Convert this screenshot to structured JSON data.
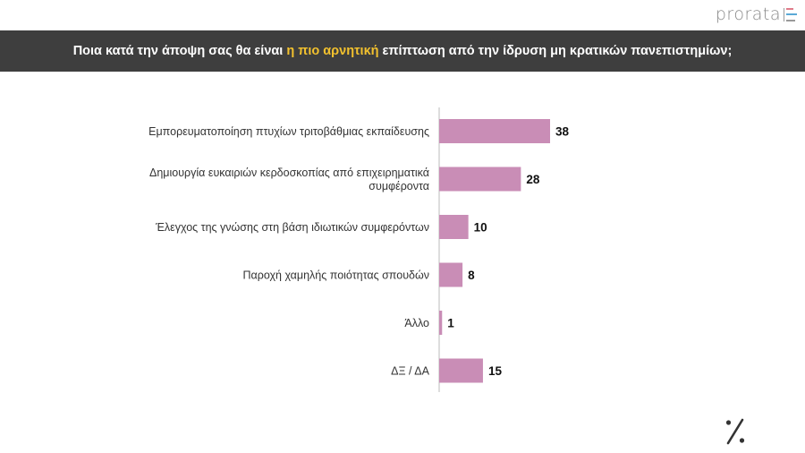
{
  "brand": {
    "name": "prorata"
  },
  "colors": {
    "bar": "#c98db6",
    "axis": "#bbbbbb",
    "title_bg": "#3e3e3e",
    "highlight": "#f2c12e"
  },
  "title": {
    "before": "Ποια κατά την άποψη σας θα είναι ",
    "highlight": "η πιο αρνητική",
    "after": " επίπτωση από την ίδρυση μη κρατικών πανεπιστημίων;"
  },
  "chart_data": {
    "type": "bar",
    "orientation": "horizontal",
    "categories": [
      [
        "Εμπορευματοποίηση πτυχίων τριτοβάθμιας εκπαίδευσης"
      ],
      [
        "Δημιουργία ευκαιριών κερδοσκοπίας από επιχειρηματικά",
        "συμφέροντα"
      ],
      [
        "Έλεγχος της γνώσης στη βάση ιδιωτικών συμφερόντων"
      ],
      [
        "Παροχή χαμηλής ποιότητας σπουδών"
      ],
      [
        "Άλλο"
      ],
      [
        "ΔΞ / ΔΑ"
      ]
    ],
    "values": [
      38,
      28,
      10,
      8,
      1,
      15
    ],
    "xlim": [
      0,
      40
    ],
    "grid": false,
    "legend": "none"
  },
  "footer": {
    "icon": "percent-icon"
  }
}
